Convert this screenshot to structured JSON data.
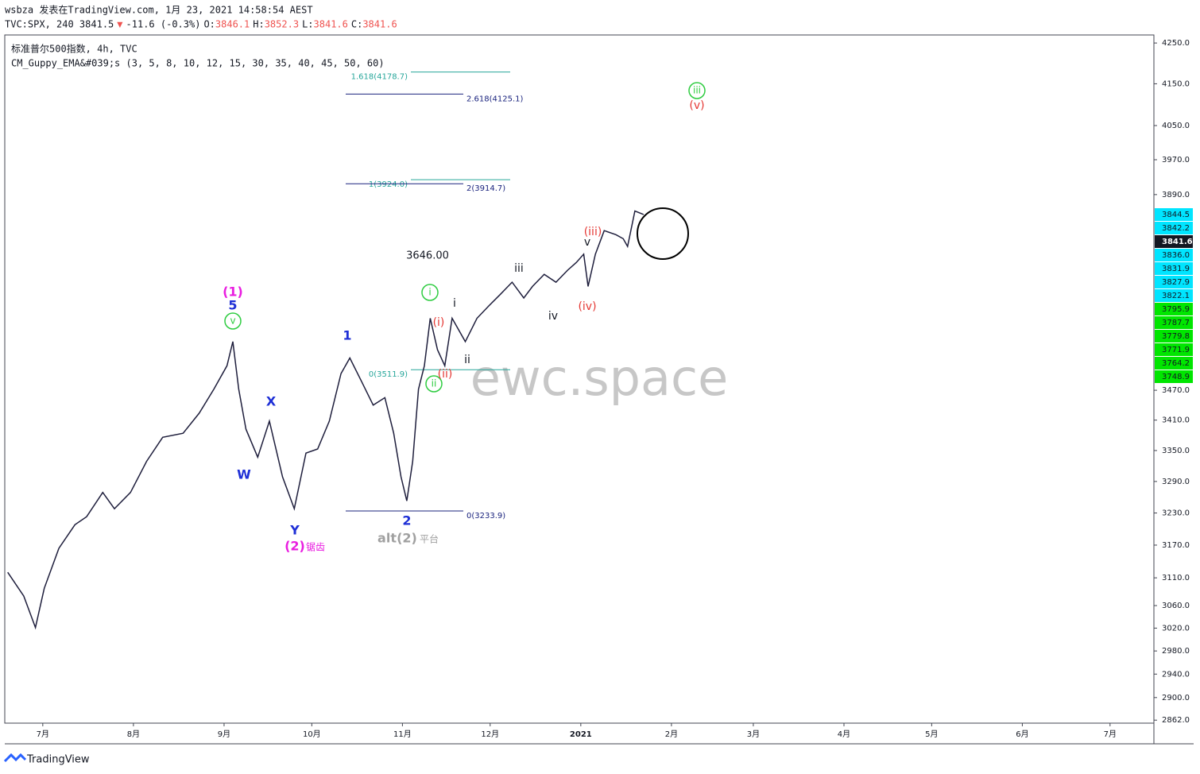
{
  "header": {
    "line1": "wsbza 发表在TradingView.com, 1月 23, 2021 14:58:54 AEST",
    "quote": [
      {
        "text": "TVC:SPX, 240 3841.5",
        "color": "#131722"
      },
      {
        "text": "▼",
        "color": "#ef5350"
      },
      {
        "text": "-11.6 (-0.3%)",
        "color": "#131722"
      },
      {
        "text": "O:",
        "color": "#131722"
      },
      {
        "text": "3846.1",
        "color": "#ef5350"
      },
      {
        "text": "H:",
        "color": "#131722"
      },
      {
        "text": "3852.3",
        "color": "#ef5350"
      },
      {
        "text": "L:",
        "color": "#131722"
      },
      {
        "text": "3841.6",
        "color": "#ef5350"
      },
      {
        "text": "C:",
        "color": "#131722"
      },
      {
        "text": "3841.6",
        "color": "#ef5350"
      }
    ],
    "symbol": "标准普尔500指数, 4h, TVC",
    "indicator": "CM_Guppy_EMA&#039;s (3, 5, 8, 10, 12, 15, 30, 35, 40, 45, 50, 60)"
  },
  "chart_data": {
    "type": "line",
    "log_scale": true,
    "ylim": [
      2857,
      4270
    ],
    "yticks": [
      {
        "value": 4250,
        "label": "4250.0"
      },
      {
        "value": 4150,
        "label": "4150.0"
      },
      {
        "value": 4050,
        "label": "4050.0"
      },
      {
        "value": 3970,
        "label": "3970.0"
      },
      {
        "value": 3890,
        "label": "3890.0"
      },
      {
        "value": 3470,
        "label": "3470.0"
      },
      {
        "value": 3410,
        "label": "3410.0"
      },
      {
        "value": 3350,
        "label": "3350.0"
      },
      {
        "value": 3290,
        "label": "3290.0"
      },
      {
        "value": 3230,
        "label": "3230.0"
      },
      {
        "value": 3170,
        "label": "3170.0"
      },
      {
        "value": 3110,
        "label": "3110.0"
      },
      {
        "value": 3060,
        "label": "3060.0"
      },
      {
        "value": 3020,
        "label": "3020.0"
      },
      {
        "value": 2980,
        "label": "2980.0"
      },
      {
        "value": 2940,
        "label": "2940.0"
      },
      {
        "value": 2900,
        "label": "2900.0"
      },
      {
        "value": 2862,
        "label": "2862.0"
      }
    ],
    "xlim": [
      -13,
      380
    ],
    "xticks": [
      {
        "value": 0,
        "label": "7月"
      },
      {
        "value": 31,
        "label": "8月"
      },
      {
        "value": 62,
        "label": "9月"
      },
      {
        "value": 92,
        "label": "10月"
      },
      {
        "value": 123,
        "label": "11月"
      },
      {
        "value": 153,
        "label": "12月"
      },
      {
        "value": 184,
        "label": "2021"
      },
      {
        "value": 215,
        "label": "2月"
      },
      {
        "value": 243,
        "label": "3月"
      },
      {
        "value": 274,
        "label": "4月"
      },
      {
        "value": 304,
        "label": "5月"
      },
      {
        "value": 335,
        "label": "6月"
      },
      {
        "value": 365,
        "label": "7月"
      }
    ],
    "x": [
      -12,
      -6.5,
      -2.5,
      0.5,
      5.5,
      11,
      15,
      20.5,
      24.5,
      30,
      35.5,
      41,
      48,
      53.5,
      58.5,
      63,
      65,
      67,
      69.5,
      73.5,
      77.5,
      82,
      86,
      90,
      94,
      98,
      102,
      105,
      109,
      113,
      117,
      120,
      122.5,
      124.5,
      126.5,
      128.5,
      130.5,
      132.5,
      135,
      137.5,
      140,
      144.5,
      148.5,
      152.5,
      156.5,
      160.5,
      164.5,
      167.5,
      171.5,
      175.5,
      179.5,
      182.5,
      185,
      186.5,
      189,
      192,
      196,
      198.5,
      200,
      202.5,
      205.5
    ],
    "series": [
      {
        "color": "#1e1e3c",
        "values": [
          3120,
          3077,
          3021,
          3091,
          3164,
          3208,
          3223,
          3269,
          3238,
          3269,
          3329,
          3376,
          3384,
          3424,
          3472,
          3520,
          3570,
          3472,
          3392,
          3337,
          3408,
          3299,
          3238,
          3345,
          3353,
          3408,
          3504,
          3536,
          3488,
          3440,
          3455,
          3384,
          3299,
          3253,
          3329,
          3472,
          3520,
          3619,
          3553,
          3520,
          3619,
          3570,
          3619,
          3645,
          3670,
          3696,
          3662,
          3687,
          3713,
          3696,
          3722,
          3739,
          3757,
          3687,
          3757,
          3809,
          3800,
          3791,
          3774,
          3853,
          3845
        ]
      }
    ],
    "fib_levels": [
      {
        "label": "1.618(4178.7)",
        "value": 4178.7,
        "color": "#26a69a"
      },
      {
        "label": "2.618(4125.1)",
        "value": 4125.1,
        "color": "#1a237e"
      },
      {
        "label": "1(3924.0)",
        "value": 3924.0,
        "color": "#26a69a"
      },
      {
        "label": "2(3914.7)",
        "value": 3914.7,
        "color": "#1a237e"
      },
      {
        "label": "0(3511.9)",
        "value": 3511.9,
        "color": "#26a69a"
      },
      {
        "label": "0(3233.9)",
        "value": 3233.9,
        "color": "#1a237e"
      }
    ],
    "price_badges": [
      {
        "label": "3844.5",
        "color": "#00e5ff"
      },
      {
        "label": "3842.2",
        "color": "#00e5ff"
      },
      {
        "label": "3841.6",
        "color": "#131722"
      },
      {
        "label": "3836.0",
        "color": "#00e5ff"
      },
      {
        "label": "3831.9",
        "color": "#00e5ff"
      },
      {
        "label": "3827.9",
        "color": "#00e5ff"
      },
      {
        "label": "3822.1",
        "color": "#00e5ff"
      },
      {
        "label": "3795.9",
        "color": "#00e600"
      },
      {
        "label": "3787.7",
        "color": "#00e600"
      },
      {
        "label": "3779.8",
        "color": "#00e600"
      },
      {
        "label": "3771.9",
        "color": "#00e600"
      },
      {
        "label": "3764.2",
        "color": "#00e600"
      },
      {
        "label": "3748.9",
        "color": "#00e600"
      }
    ],
    "annotations": [
      {
        "text": "(1)",
        "color": "#e91ee0"
      },
      {
        "text": "5",
        "color": "#1e2fd6"
      },
      {
        "text": "v",
        "color": "#2ecc40"
      },
      {
        "text": "X",
        "color": "#1e2fd6"
      },
      {
        "text": "W",
        "color": "#1e2fd6"
      },
      {
        "text": "Y",
        "color": "#1e2fd6"
      },
      {
        "text": "(2)",
        "color": "#e91ee0"
      },
      {
        "text": "锯齿",
        "color": "#e91ee0"
      },
      {
        "text": "1",
        "color": "#1e2fd6"
      },
      {
        "text": "2",
        "color": "#1e2fd6"
      },
      {
        "text": "alt",
        "color": "#a0a0a0"
      },
      {
        "text": "(2)",
        "color": "#a0a0a0"
      },
      {
        "text": "平台",
        "color": "#a0a0a0"
      },
      {
        "text": "i",
        "color": "#2ecc40"
      },
      {
        "text": "(i)",
        "color": "#e53935"
      },
      {
        "text": "i",
        "color": "#131722"
      },
      {
        "text": "ii",
        "color": "#2ecc40"
      },
      {
        "text": "(ii)",
        "color": "#e53935"
      },
      {
        "text": "ii",
        "color": "#131722"
      },
      {
        "text": "iii",
        "color": "#131722"
      },
      {
        "text": "iv",
        "color": "#131722"
      },
      {
        "text": "(iii)",
        "color": "#e53935"
      },
      {
        "text": "v",
        "color": "#131722"
      },
      {
        "text": "(iv)",
        "color": "#e53935"
      },
      {
        "text": "iii",
        "color": "#2ecc40"
      },
      {
        "text": "(v)",
        "color": "#e53935"
      },
      {
        "text": "3646.00",
        "color": "#131722"
      }
    ],
    "watermark": "ewc.space"
  },
  "footer": {
    "brand": "TradingView"
  }
}
